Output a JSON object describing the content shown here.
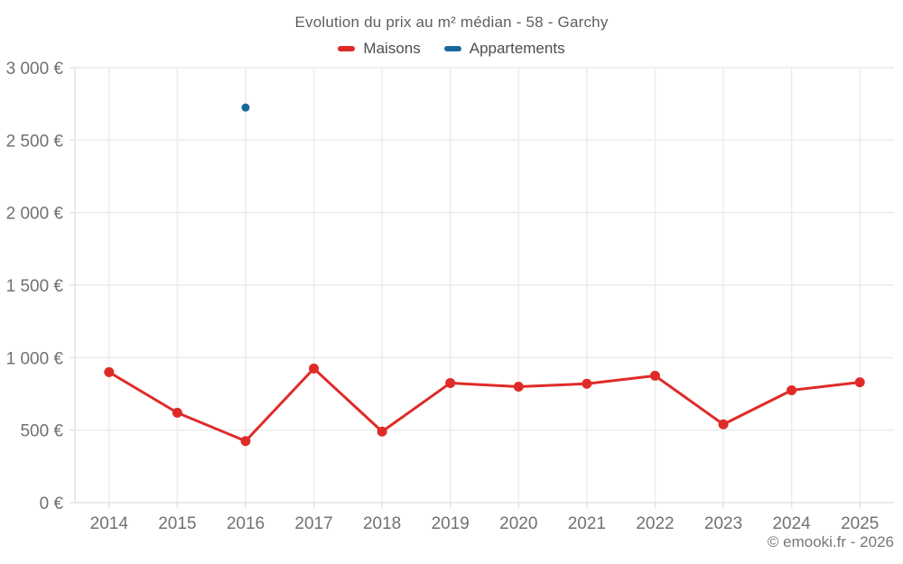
{
  "chart_data": {
    "type": "line",
    "title": "Evolution du prix au m² médian - 58 - Garchy",
    "categories": [
      "2014",
      "2015",
      "2016",
      "2017",
      "2018",
      "2019",
      "2020",
      "2021",
      "2022",
      "2023",
      "2024",
      "2025"
    ],
    "series": [
      {
        "name": "Maisons",
        "color": "#df2b28",
        "values": [
          900,
          620,
          425,
          925,
          490,
          825,
          800,
          820,
          875,
          540,
          775,
          830
        ]
      },
      {
        "name": "Appartements",
        "color": "#17699c",
        "values": [
          null,
          null,
          2725,
          null,
          null,
          null,
          null,
          null,
          null,
          null,
          null,
          null
        ]
      }
    ],
    "ylim": [
      0,
      3000
    ],
    "yticks": [
      0,
      500,
      1000,
      1500,
      2000,
      2500,
      3000
    ],
    "ytick_labels": [
      "0 €",
      "500 €",
      "1 000 €",
      "1 500 €",
      "2 000 €",
      "2 500 €",
      "3 000 €"
    ],
    "grid": true,
    "legend_position": "top"
  },
  "footer": {
    "attribution": "© emooki.fr - 2026"
  },
  "colors": {
    "maisons": "#df2b28",
    "appartements": "#17699c",
    "grid_line": "#ececec",
    "axis_line": "#e3e3e3",
    "tick_text": "#6f7173",
    "title_text": "#5d5f62"
  }
}
